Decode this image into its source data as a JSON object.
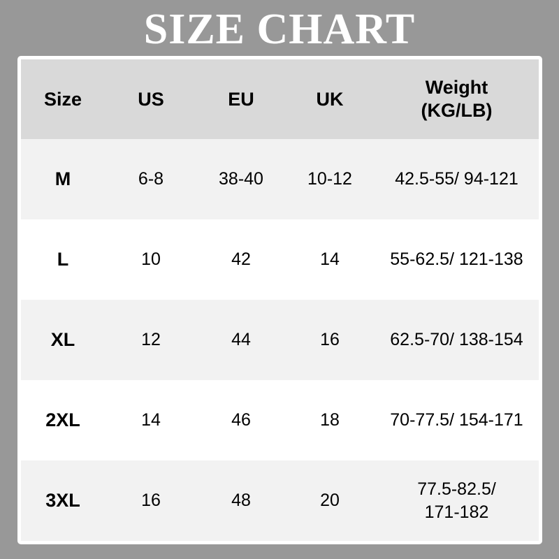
{
  "title": "SIZE CHART",
  "headers": [
    "Size",
    "US",
    "EU",
    "UK",
    "Weight (KG/LB)"
  ],
  "rows": [
    {
      "size": "M",
      "us": "6-8",
      "eu": "38-40",
      "uk": "10-12",
      "weight": "42.5-55/ 94-121"
    },
    {
      "size": "L",
      "us": "10",
      "eu": "42",
      "uk": "14",
      "weight": "55-62.5/ 121-138"
    },
    {
      "size": "XL",
      "us": "12",
      "eu": "44",
      "uk": "16",
      "weight": "62.5-70/ 138-154"
    },
    {
      "size": "2XL",
      "us": "14",
      "eu": "46",
      "uk": "18",
      "weight": "70-77.5/ 154-171"
    },
    {
      "size": "3XL",
      "us": "16",
      "eu": "48",
      "uk": "20",
      "weight": "77.5-82.5/ 171-182"
    }
  ],
  "colors": {
    "background": "#989898",
    "header": "#d9d9d9",
    "row_alt": "#f2f2f2",
    "row": "#ffffff"
  }
}
